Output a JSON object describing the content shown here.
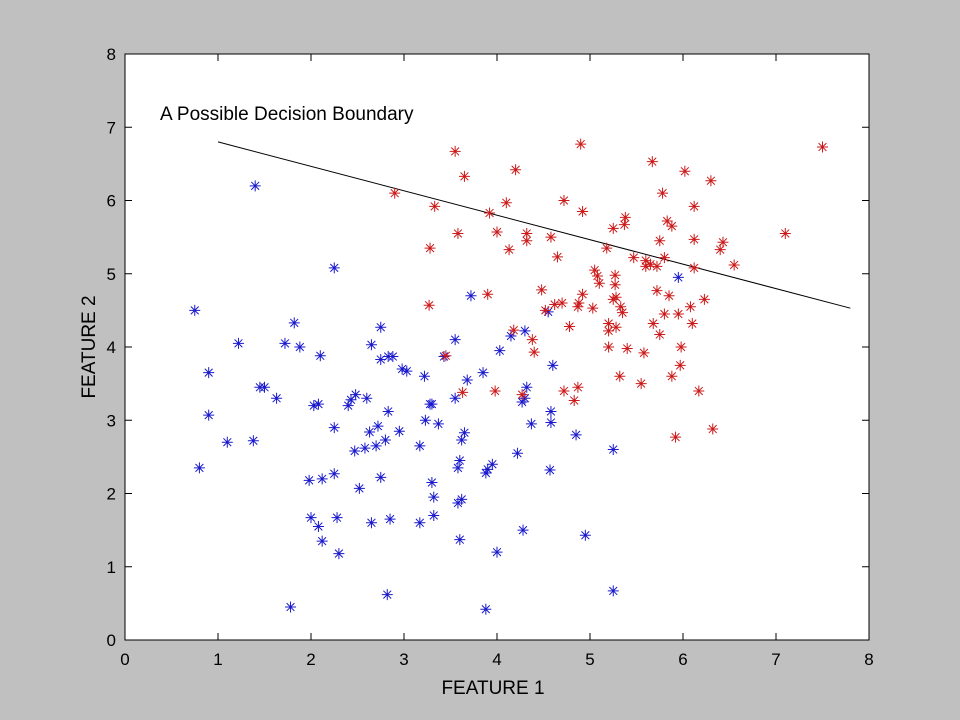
{
  "chart_data": {
    "type": "scatter",
    "xlabel": "FEATURE 1",
    "ylabel": "FEATURE 2",
    "xlim": [
      0,
      8
    ],
    "ylim": [
      0,
      8
    ],
    "xticks": [
      "0",
      "1",
      "2",
      "3",
      "4",
      "5",
      "6",
      "7",
      "8"
    ],
    "yticks": [
      "0",
      "1",
      "2",
      "3",
      "4",
      "5",
      "6",
      "7",
      "8"
    ],
    "grid": false,
    "marker": "asterisk",
    "annotation": "A Possible Decision Boundary",
    "boundary_line": {
      "x": [
        1.0,
        7.8
      ],
      "y": [
        6.8,
        4.53
      ]
    },
    "series": [
      {
        "color": "#1a1acc",
        "points": [
          [
            0.75,
            4.5
          ],
          [
            0.8,
            2.35
          ],
          [
            0.9,
            3.65
          ],
          [
            0.9,
            3.07
          ],
          [
            1.1,
            2.7
          ],
          [
            1.22,
            4.05
          ],
          [
            1.38,
            2.72
          ],
          [
            1.4,
            6.2
          ],
          [
            1.45,
            3.45
          ],
          [
            1.5,
            3.45
          ],
          [
            1.63,
            3.3
          ],
          [
            1.72,
            4.05
          ],
          [
            1.78,
            0.45
          ],
          [
            1.82,
            4.33
          ],
          [
            1.88,
            4.0
          ],
          [
            1.98,
            2.18
          ],
          [
            2.0,
            1.67
          ],
          [
            2.03,
            3.2
          ],
          [
            2.08,
            3.22
          ],
          [
            2.08,
            1.55
          ],
          [
            2.1,
            3.88
          ],
          [
            2.12,
            2.2
          ],
          [
            2.12,
            1.35
          ],
          [
            2.25,
            5.08
          ],
          [
            2.25,
            2.9
          ],
          [
            2.25,
            2.27
          ],
          [
            2.28,
            1.67
          ],
          [
            2.3,
            1.18
          ],
          [
            2.4,
            3.2
          ],
          [
            2.43,
            3.28
          ],
          [
            2.47,
            2.58
          ],
          [
            2.48,
            3.35
          ],
          [
            2.52,
            2.07
          ],
          [
            2.58,
            2.62
          ],
          [
            2.6,
            3.3
          ],
          [
            2.63,
            2.84
          ],
          [
            2.65,
            1.6
          ],
          [
            2.65,
            4.03
          ],
          [
            2.7,
            2.65
          ],
          [
            2.72,
            2.92
          ],
          [
            2.75,
            4.27
          ],
          [
            2.75,
            2.22
          ],
          [
            2.75,
            3.83
          ],
          [
            2.8,
            2.73
          ],
          [
            2.82,
            0.62
          ],
          [
            2.83,
            3.12
          ],
          [
            2.83,
            3.87
          ],
          [
            2.85,
            1.65
          ],
          [
            2.88,
            3.87
          ],
          [
            2.95,
            2.85
          ],
          [
            2.98,
            3.7
          ],
          [
            3.03,
            3.67
          ],
          [
            3.17,
            2.65
          ],
          [
            3.17,
            1.6
          ],
          [
            3.22,
            3.6
          ],
          [
            3.23,
            3.0
          ],
          [
            3.28,
            3.22
          ],
          [
            3.3,
            3.22
          ],
          [
            3.3,
            2.15
          ],
          [
            3.32,
            1.7
          ],
          [
            3.32,
            1.95
          ],
          [
            3.37,
            2.95
          ],
          [
            3.43,
            3.87
          ],
          [
            3.55,
            3.3
          ],
          [
            3.55,
            4.1
          ],
          [
            3.58,
            2.35
          ],
          [
            3.6,
            2.45
          ],
          [
            3.6,
            1.37
          ],
          [
            3.58,
            1.87
          ],
          [
            3.62,
            1.92
          ],
          [
            3.62,
            2.73
          ],
          [
            3.65,
            2.83
          ],
          [
            3.68,
            3.55
          ],
          [
            3.72,
            4.7
          ],
          [
            3.85,
            3.65
          ],
          [
            3.88,
            2.28
          ],
          [
            3.88,
            0.42
          ],
          [
            3.9,
            2.33
          ],
          [
            3.95,
            2.4
          ],
          [
            4.0,
            1.2
          ],
          [
            4.03,
            3.95
          ],
          [
            4.15,
            4.15
          ],
          [
            4.22,
            2.55
          ],
          [
            4.27,
            3.25
          ],
          [
            4.28,
            1.5
          ],
          [
            4.3,
            3.3
          ],
          [
            4.3,
            4.22
          ],
          [
            4.32,
            3.45
          ],
          [
            4.37,
            2.95
          ],
          [
            4.55,
            4.48
          ],
          [
            4.58,
            3.12
          ],
          [
            4.58,
            2.97
          ],
          [
            4.6,
            3.75
          ],
          [
            4.57,
            2.32
          ],
          [
            4.85,
            2.8
          ],
          [
            4.95,
            1.43
          ],
          [
            5.25,
            2.6
          ],
          [
            5.25,
            0.67
          ],
          [
            5.95,
            4.95
          ]
        ]
      },
      {
        "color": "#cc1a1a",
        "points": [
          [
            2.9,
            6.1
          ],
          [
            3.27,
            4.57
          ],
          [
            3.28,
            5.35
          ],
          [
            3.33,
            5.92
          ],
          [
            3.45,
            3.88
          ],
          [
            3.55,
            6.67
          ],
          [
            3.58,
            5.55
          ],
          [
            3.63,
            3.38
          ],
          [
            3.65,
            6.33
          ],
          [
            3.9,
            4.72
          ],
          [
            3.92,
            5.83
          ],
          [
            3.98,
            3.4
          ],
          [
            4.0,
            5.57
          ],
          [
            4.1,
            5.97
          ],
          [
            4.13,
            5.33
          ],
          [
            4.18,
            4.23
          ],
          [
            4.2,
            6.42
          ],
          [
            4.27,
            3.35
          ],
          [
            4.32,
            5.45
          ],
          [
            4.32,
            5.55
          ],
          [
            4.38,
            4.1
          ],
          [
            4.4,
            3.93
          ],
          [
            4.48,
            4.78
          ],
          [
            4.52,
            4.5
          ],
          [
            4.58,
            5.5
          ],
          [
            4.62,
            4.58
          ],
          [
            4.65,
            5.23
          ],
          [
            4.7,
            4.6
          ],
          [
            4.72,
            3.4
          ],
          [
            4.72,
            6.0
          ],
          [
            4.78,
            4.28
          ],
          [
            4.83,
            3.27
          ],
          [
            4.87,
            4.55
          ],
          [
            4.87,
            3.45
          ],
          [
            4.88,
            4.6
          ],
          [
            4.9,
            6.77
          ],
          [
            4.92,
            5.85
          ],
          [
            4.92,
            4.72
          ],
          [
            5.03,
            4.53
          ],
          [
            5.05,
            5.05
          ],
          [
            5.08,
            4.97
          ],
          [
            5.1,
            4.87
          ],
          [
            5.18,
            5.35
          ],
          [
            5.2,
            4.22
          ],
          [
            5.2,
            4.0
          ],
          [
            5.2,
            4.32
          ],
          [
            5.25,
            4.65
          ],
          [
            5.25,
            5.62
          ],
          [
            5.27,
            4.85
          ],
          [
            5.27,
            4.98
          ],
          [
            5.28,
            4.27
          ],
          [
            5.28,
            4.68
          ],
          [
            5.32,
            3.6
          ],
          [
            5.33,
            4.55
          ],
          [
            5.35,
            4.47
          ],
          [
            5.37,
            5.67
          ],
          [
            5.38,
            5.77
          ],
          [
            5.4,
            3.98
          ],
          [
            5.47,
            5.22
          ],
          [
            5.55,
            3.5
          ],
          [
            5.58,
            3.92
          ],
          [
            5.6,
            5.18
          ],
          [
            5.6,
            5.1
          ],
          [
            5.65,
            5.13
          ],
          [
            5.67,
            6.53
          ],
          [
            5.68,
            4.32
          ],
          [
            5.72,
            5.1
          ],
          [
            5.72,
            4.77
          ],
          [
            5.75,
            4.17
          ],
          [
            5.75,
            5.45
          ],
          [
            5.78,
            6.1
          ],
          [
            5.8,
            5.22
          ],
          [
            5.8,
            4.45
          ],
          [
            5.83,
            5.72
          ],
          [
            5.85,
            4.7
          ],
          [
            5.88,
            3.6
          ],
          [
            5.88,
            5.65
          ],
          [
            5.92,
            2.77
          ],
          [
            5.95,
            4.45
          ],
          [
            5.97,
            3.75
          ],
          [
            5.98,
            4.0
          ],
          [
            6.02,
            6.4
          ],
          [
            6.08,
            4.55
          ],
          [
            6.1,
            4.32
          ],
          [
            6.12,
            5.92
          ],
          [
            6.12,
            5.47
          ],
          [
            6.12,
            5.08
          ],
          [
            6.17,
            3.4
          ],
          [
            6.23,
            4.65
          ],
          [
            6.3,
            6.27
          ],
          [
            6.32,
            2.88
          ],
          [
            6.4,
            5.33
          ],
          [
            6.43,
            5.43
          ],
          [
            6.55,
            5.12
          ],
          [
            7.1,
            5.55
          ],
          [
            7.5,
            6.73
          ]
        ]
      }
    ]
  }
}
